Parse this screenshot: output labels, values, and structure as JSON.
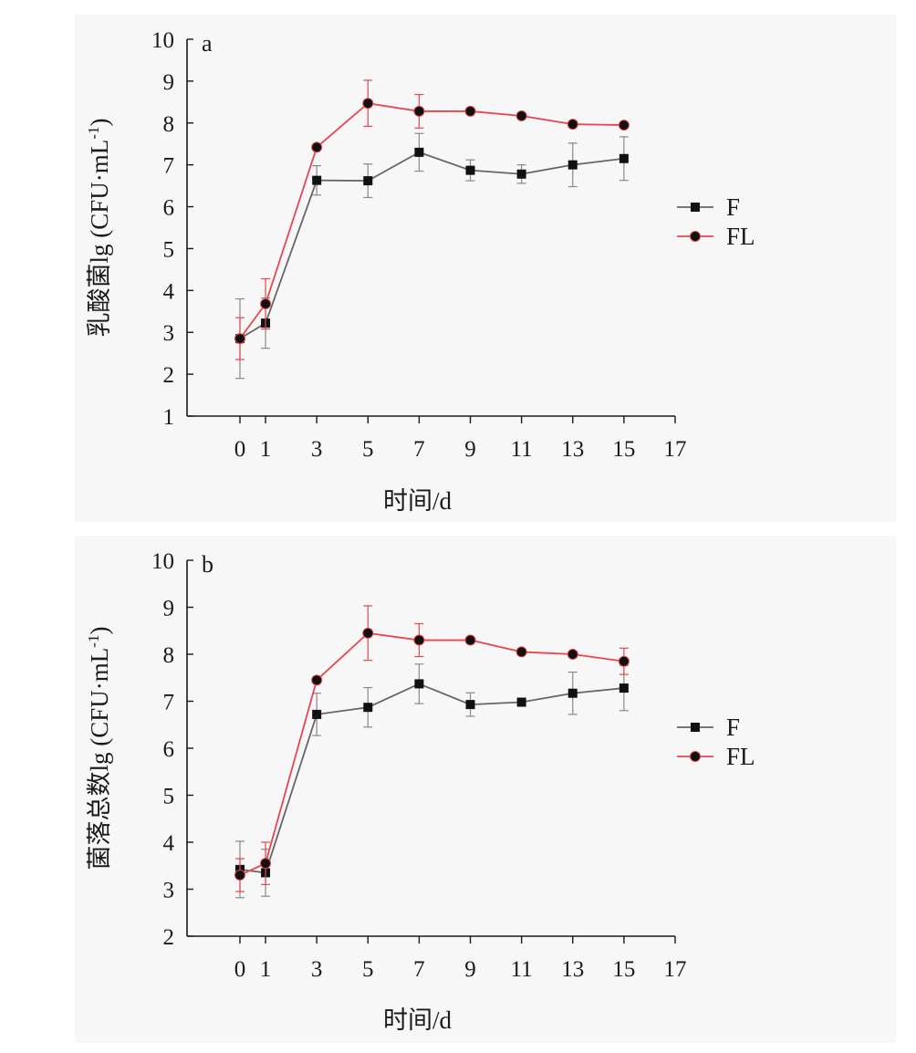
{
  "colors": {
    "axis": "#1a1a1a",
    "error_bar": "#888888",
    "panel_bg": "#f7f7f7"
  },
  "chart_data": [
    {
      "type": "line",
      "panel_label": "a",
      "xlabel": "时间/d",
      "ylabel": "乳酸菌lg (CFU·mL",
      "ylabel_sup": "-1",
      "ylabel_close": ")",
      "xlim": [
        -2,
        17
      ],
      "ylim": [
        1,
        10
      ],
      "xticks": [
        0,
        1,
        3,
        5,
        7,
        9,
        11,
        13,
        15,
        17
      ],
      "yticks": [
        1,
        2,
        3,
        4,
        5,
        6,
        7,
        8,
        9,
        10
      ],
      "legend_position": "right",
      "x": [
        0,
        1,
        3,
        5,
        7,
        9,
        11,
        13,
        15
      ],
      "series": [
        {
          "name": "F",
          "marker": "square",
          "line_color": "#666666",
          "marker_color": "#111111",
          "values": [
            2.85,
            3.22,
            6.63,
            6.62,
            7.3,
            6.87,
            6.78,
            7.0,
            7.15
          ],
          "errors": [
            0.95,
            0.6,
            0.35,
            0.4,
            0.45,
            0.25,
            0.22,
            0.52,
            0.52
          ]
        },
        {
          "name": "FL",
          "marker": "circle",
          "line_color": "#e8454f",
          "marker_color": "#111111",
          "values": [
            2.85,
            3.68,
            7.42,
            8.47,
            8.28,
            8.28,
            8.17,
            7.97,
            7.95
          ],
          "errors": [
            0.5,
            0.6,
            0.0,
            0.55,
            0.4,
            0.0,
            0.0,
            0.0,
            0.0
          ]
        }
      ]
    },
    {
      "type": "line",
      "panel_label": "b",
      "xlabel": "时间/d",
      "ylabel": "菌落总数lg (CFU·mL",
      "ylabel_sup": "-1",
      "ylabel_close": ")",
      "xlim": [
        -2,
        17
      ],
      "ylim": [
        2,
        10
      ],
      "xticks": [
        0,
        1,
        3,
        5,
        7,
        9,
        11,
        13,
        15,
        17
      ],
      "yticks": [
        2,
        3,
        4,
        5,
        6,
        7,
        8,
        9,
        10
      ],
      "legend_position": "right",
      "x": [
        0,
        1,
        3,
        5,
        7,
        9,
        11,
        13,
        15
      ],
      "series": [
        {
          "name": "F",
          "marker": "square",
          "line_color": "#666666",
          "marker_color": "#111111",
          "values": [
            3.42,
            3.35,
            6.72,
            6.87,
            7.37,
            6.93,
            6.98,
            7.17,
            7.28
          ],
          "errors": [
            0.6,
            0.5,
            0.45,
            0.42,
            0.42,
            0.25,
            0.0,
            0.45,
            0.48
          ]
        },
        {
          "name": "FL",
          "marker": "circle",
          "line_color": "#e8454f",
          "marker_color": "#111111",
          "values": [
            3.3,
            3.55,
            7.45,
            8.45,
            8.3,
            8.3,
            8.05,
            8.0,
            7.85
          ],
          "errors": [
            0.35,
            0.45,
            0.0,
            0.58,
            0.35,
            0.0,
            0.0,
            0.0,
            0.28
          ]
        }
      ]
    }
  ]
}
